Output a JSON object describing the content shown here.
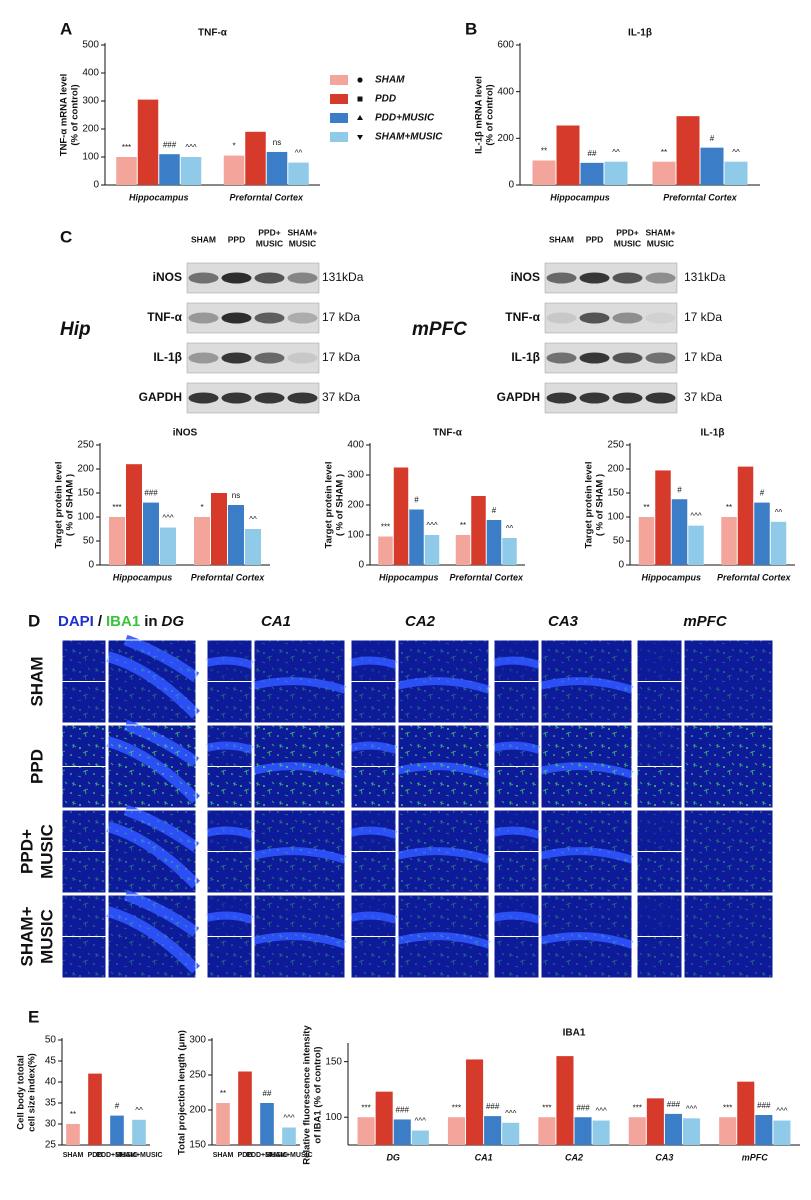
{
  "panel_labels": [
    "A",
    "B",
    "C",
    "D",
    "E"
  ],
  "blot": {
    "lanes": [
      [
        "SHAM"
      ],
      [
        "PPD"
      ],
      [
        "PPD+",
        "MUSIC"
      ],
      [
        "SHAM+",
        "MUSIC"
      ]
    ],
    "regions": [
      "Hip",
      "mPFC"
    ],
    "proteins": [
      "iNOS",
      "TNF-α",
      "IL-1β",
      "GAPDH"
    ],
    "sizes": [
      "131kDa",
      "17 kDa",
      "17 kDa",
      "37 kDa"
    ]
  },
  "imaging": {
    "header": [
      "DAPI",
      "/",
      "IBA1",
      "in",
      "DG"
    ],
    "columns": [
      "CA1",
      "CA2",
      "CA3",
      "mPFC"
    ],
    "rows": [
      [
        "SHAM"
      ],
      [
        "PPD"
      ],
      [
        "PPD+",
        "MUSIC"
      ],
      [
        "SHAM+",
        "MUSIC"
      ]
    ]
  },
  "chart_data": [
    {
      "type": "bar",
      "title": "TNF-α",
      "ylabel": [
        "TNF-α mRNA level",
        "(% of control)"
      ],
      "categories": [
        "Hippocampus",
        "Preforntal Cortex"
      ],
      "series": [
        {
          "name": "SHAM",
          "color": "#f3a59c",
          "values": [
            100,
            105
          ],
          "significance": [
            "***",
            "*"
          ]
        },
        {
          "name": "PDD",
          "color": "#d63a2b",
          "values": [
            305,
            190
          ]
        },
        {
          "name": "PDD+MUSIC",
          "color": "#3b7dc6",
          "values": [
            110,
            118
          ],
          "significance": [
            "###",
            "ns"
          ]
        },
        {
          "name": "SHAM+MUSIC",
          "color": "#8fcbe8",
          "values": [
            100,
            80
          ],
          "significance": [
            "^^^",
            "^^"
          ]
        }
      ],
      "ylim": [
        0,
        500
      ],
      "yticks": [
        0,
        100,
        200,
        300,
        400,
        500
      ]
    },
    {
      "type": "bar",
      "title": "IL-1β",
      "ylabel": [
        "IL-1β mRNA level",
        "(% of control)"
      ],
      "categories": [
        "Hippocampus",
        "Preforntal Cortex"
      ],
      "series": [
        {
          "name": "SHAM",
          "color": "#f3a59c",
          "values": [
            105,
            100
          ],
          "significance": [
            "**",
            "**"
          ]
        },
        {
          "name": "PDD",
          "color": "#d63a2b",
          "values": [
            255,
            295
          ]
        },
        {
          "name": "PDD+MUSIC",
          "color": "#3b7dc6",
          "values": [
            95,
            160
          ],
          "significance": [
            "##",
            "#"
          ]
        },
        {
          "name": "SHAM+MUSIC",
          "color": "#8fcbe8",
          "values": [
            100,
            100
          ],
          "significance": [
            "^^",
            "^^"
          ]
        }
      ],
      "ylim": [
        0,
        600
      ],
      "yticks": [
        0,
        200,
        400,
        600
      ]
    },
    {
      "type": "bar",
      "title": "iNOS",
      "ylabel": [
        "Target protein level",
        "( % of SHAM )"
      ],
      "categories": [
        "Hippocampus",
        "Preforntal Cortex"
      ],
      "series": [
        {
          "name": "SHAM",
          "color": "#f3a59c",
          "values": [
            100,
            100
          ],
          "significance": [
            "***",
            "*"
          ]
        },
        {
          "name": "PDD",
          "color": "#d63a2b",
          "values": [
            210,
            150
          ]
        },
        {
          "name": "PDD+MUSIC",
          "color": "#3b7dc6",
          "values": [
            130,
            125
          ],
          "significance": [
            "###",
            "ns"
          ]
        },
        {
          "name": "SHAM+MUSIC",
          "color": "#8fcbe8",
          "values": [
            78,
            75
          ],
          "significance": [
            "^^^",
            "^^"
          ]
        }
      ],
      "ylim": [
        0,
        250
      ],
      "yticks": [
        0,
        50,
        100,
        150,
        200,
        250
      ]
    },
    {
      "type": "bar",
      "title": "TNF-α",
      "ylabel": [
        "Target protein level",
        "( % of SHAM )"
      ],
      "categories": [
        "Hippocampus",
        "Preforntal Cortex"
      ],
      "series": [
        {
          "name": "SHAM",
          "color": "#f3a59c",
          "values": [
            95,
            100
          ],
          "significance": [
            "***",
            "**"
          ]
        },
        {
          "name": "PDD",
          "color": "#d63a2b",
          "values": [
            325,
            230
          ]
        },
        {
          "name": "PDD+MUSIC",
          "color": "#3b7dc6",
          "values": [
            185,
            150
          ],
          "significance": [
            "#",
            "#"
          ]
        },
        {
          "name": "SHAM+MUSIC",
          "color": "#8fcbe8",
          "values": [
            100,
            90
          ],
          "significance": [
            "^^^",
            "^^"
          ]
        }
      ],
      "ylim": [
        0,
        400
      ],
      "yticks": [
        0,
        100,
        200,
        300,
        400
      ]
    },
    {
      "type": "bar",
      "title": "IL-1β",
      "ylabel": [
        "Target protein level",
        "( % of SHAM )"
      ],
      "categories": [
        "Hippocampus",
        "Preforntal Cortex"
      ],
      "series": [
        {
          "name": "SHAM",
          "color": "#f3a59c",
          "values": [
            100,
            100
          ],
          "significance": [
            "**",
            "**"
          ]
        },
        {
          "name": "PDD",
          "color": "#d63a2b",
          "values": [
            197,
            205
          ]
        },
        {
          "name": "PDD+MUSIC",
          "color": "#3b7dc6",
          "values": [
            137,
            130
          ],
          "significance": [
            "#",
            "#"
          ]
        },
        {
          "name": "SHAM+MUSIC",
          "color": "#8fcbe8",
          "values": [
            82,
            90
          ],
          "significance": [
            "^^^",
            "^^"
          ]
        }
      ],
      "ylim": [
        0,
        250
      ],
      "yticks": [
        0,
        50,
        100,
        150,
        200,
        250
      ]
    },
    {
      "type": "bar",
      "ylabel": [
        "Cell body tototal",
        "cell size index(%)"
      ],
      "categories": [
        "SHAM",
        "PDD",
        "PDD+MUSIC",
        "SHAM+MUSIC"
      ],
      "values": [
        30,
        42,
        32,
        31
      ],
      "colors": [
        "#f3a59c",
        "#d63a2b",
        "#3b7dc6",
        "#8fcbe8"
      ],
      "significance": [
        "**",
        null,
        "#",
        "^^"
      ],
      "ylim": [
        25,
        50
      ],
      "yticks": [
        25,
        30,
        35,
        40,
        45,
        50
      ]
    },
    {
      "type": "bar",
      "ylabel": [
        "Total projection length (μm)"
      ],
      "categories": [
        "SHAM",
        "PDD",
        "PDD+MUSIC",
        "SHAM+MUSIC"
      ],
      "values": [
        210,
        255,
        210,
        175
      ],
      "colors": [
        "#f3a59c",
        "#d63a2b",
        "#3b7dc6",
        "#8fcbe8"
      ],
      "significance": [
        "**",
        null,
        "##",
        "^^^"
      ],
      "ylim": [
        150,
        300
      ],
      "yticks": [
        150,
        200,
        250,
        300
      ]
    },
    {
      "type": "bar",
      "title": "IBA1",
      "ylabel": [
        "Relative fluorescence intensity",
        "of IBA1 (% of control)"
      ],
      "categories": [
        "DG",
        "CA1",
        "CA2",
        "CA3",
        "mPFC"
      ],
      "series": [
        {
          "name": "SHAM",
          "color": "#f3a59c",
          "values": [
            100,
            100,
            100,
            100,
            100
          ],
          "significance": [
            "***",
            "***",
            "***",
            "***",
            "***"
          ]
        },
        {
          "name": "PDD",
          "color": "#d63a2b",
          "values": [
            123,
            152,
            155,
            117,
            132
          ]
        },
        {
          "name": "PDD+MUSIC",
          "color": "#3b7dc6",
          "values": [
            98,
            101,
            100,
            103,
            102
          ],
          "significance": [
            "###",
            "###",
            "###",
            "###",
            "###"
          ]
        },
        {
          "name": "SHAM+MUSIC",
          "color": "#8fcbe8",
          "values": [
            88,
            95,
            97,
            99,
            97
          ],
          "significance": [
            "^^^",
            "^^^",
            "^^^",
            "^^^",
            "^^^"
          ]
        }
      ],
      "ylim": [
        75,
        165
      ],
      "yticks": [
        100,
        150
      ]
    }
  ]
}
